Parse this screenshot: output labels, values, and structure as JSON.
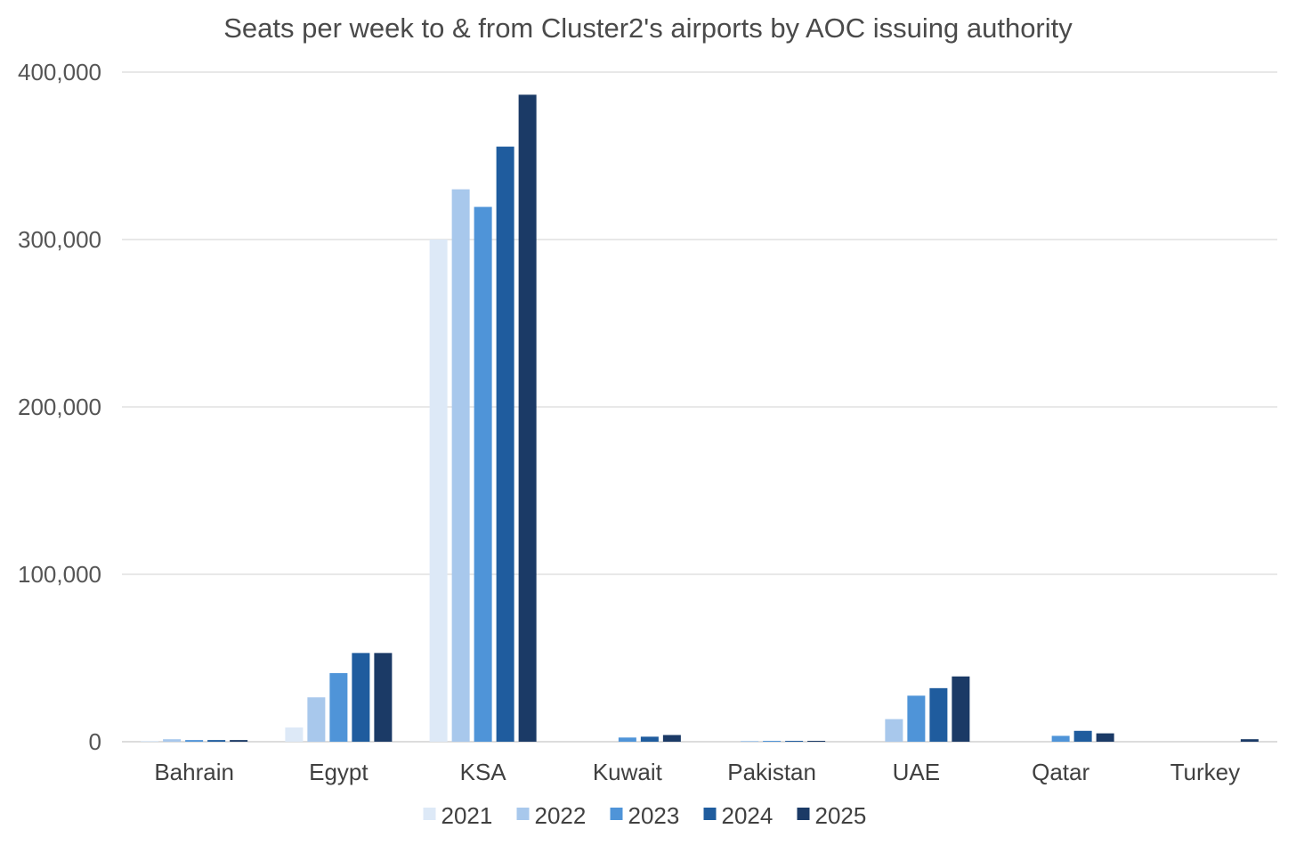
{
  "chart_data": {
    "type": "bar",
    "title": "Seats per week to & from Cluster2's airports by AOC issuing authority",
    "xlabel": "",
    "ylabel": "",
    "ylim": [
      0,
      400000
    ],
    "yticks": [
      0,
      100000,
      200000,
      300000,
      400000
    ],
    "ytick_labels": [
      "0",
      "100,000",
      "200,000",
      "300,000",
      "400,000"
    ],
    "grid": true,
    "legend_position": "bottom",
    "categories": [
      "Bahrain",
      "Egypt",
      "KSA",
      "Kuwait",
      "Pakistan",
      "UAE",
      "Qatar",
      "Turkey"
    ],
    "series": [
      {
        "name": "2021",
        "color": "#dde9f7",
        "values": [
          500,
          8500,
          300000,
          0,
          0,
          0,
          0,
          0
        ]
      },
      {
        "name": "2022",
        "color": "#a8c8ec",
        "values": [
          1500,
          26500,
          330000,
          0,
          500,
          13500,
          0,
          0
        ]
      },
      {
        "name": "2023",
        "color": "#4f94d8",
        "values": [
          1000,
          41000,
          319500,
          2500,
          500,
          27500,
          3500,
          0
        ]
      },
      {
        "name": "2024",
        "color": "#1f5c9e",
        "values": [
          1000,
          53000,
          355500,
          3000,
          500,
          32000,
          6500,
          0
        ]
      },
      {
        "name": "2025",
        "color": "#1b3a66",
        "values": [
          1000,
          53000,
          386500,
          4000,
          500,
          39000,
          5000,
          1500
        ]
      }
    ]
  }
}
